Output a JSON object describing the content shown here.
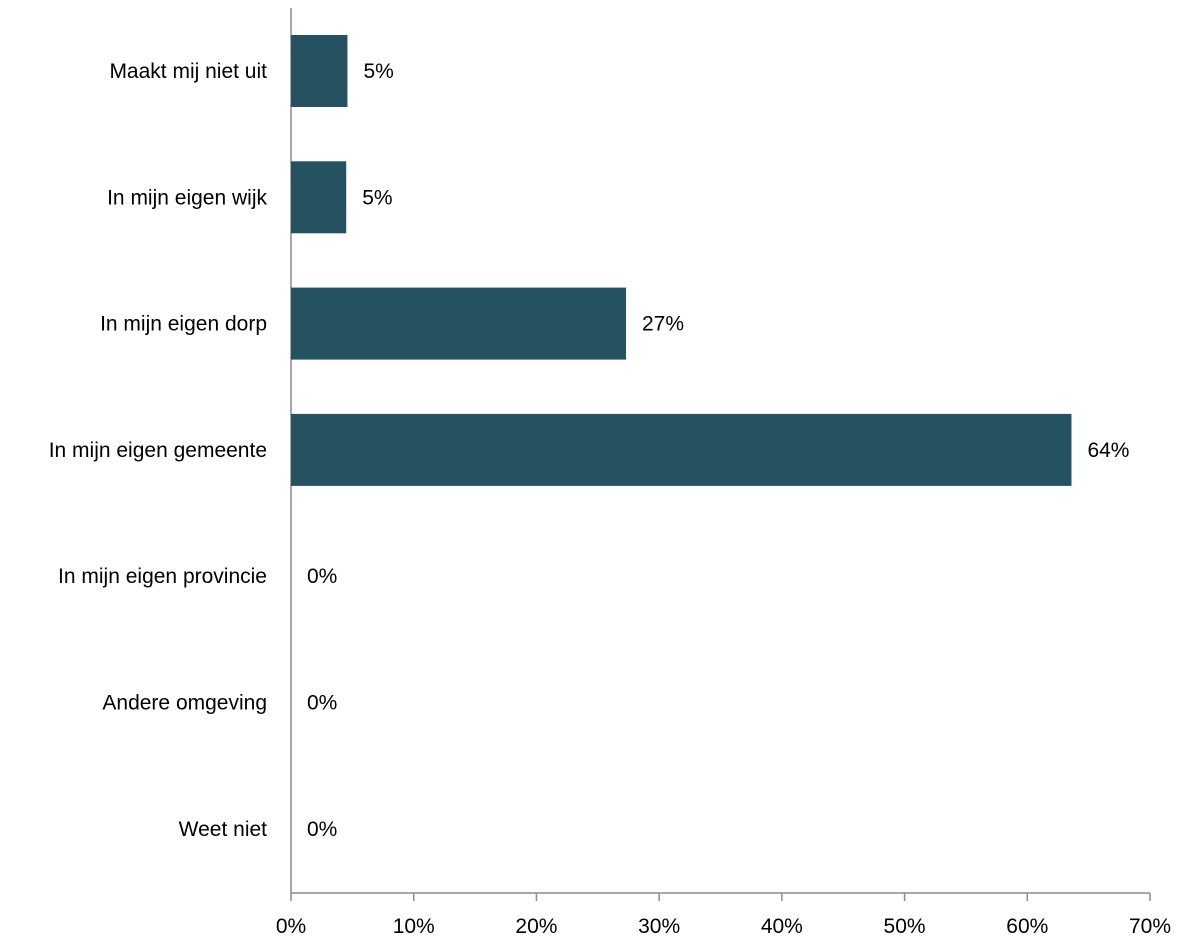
{
  "colors": {
    "bar": "#245260",
    "axis": "#8c8c8c",
    "text": "#000000",
    "background": "#ffffff"
  },
  "chart_data": {
    "type": "bar",
    "orientation": "horizontal",
    "title": "",
    "xlabel": "",
    "ylabel": "",
    "xlim": [
      0,
      70
    ],
    "x_ticks": [
      0,
      10,
      20,
      30,
      40,
      50,
      60,
      70
    ],
    "x_tick_labels": [
      "0%",
      "10%",
      "20%",
      "30%",
      "40%",
      "50%",
      "60%",
      "70%"
    ],
    "grid": false,
    "legend": "none",
    "categories": [
      "Maakt mij niet uit",
      "In mijn eigen wijk",
      "In mijn eigen dorp",
      "In mijn eigen gemeente",
      "In mijn eigen provincie",
      "Andere omgeving",
      "Weet niet"
    ],
    "values": [
      4.6,
      4.5,
      27.3,
      63.6,
      0,
      0,
      0
    ],
    "data_labels": [
      "5%",
      "5%",
      "27%",
      "64%",
      "0%",
      "0%",
      "0%"
    ]
  }
}
